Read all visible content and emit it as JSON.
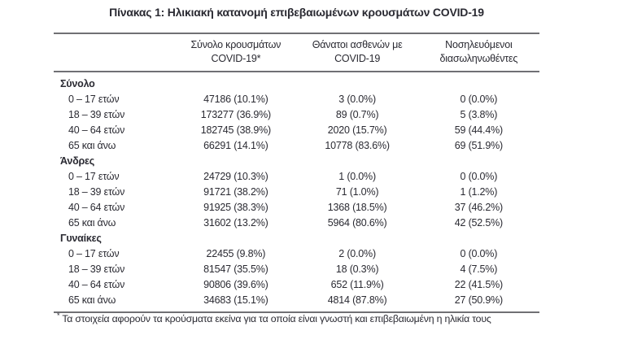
{
  "title": "Πίνακας 1: Ηλικιακή κατανομή επιβεβαιωμένων κρουσμάτων COVID-19",
  "headers": [
    {
      "line1": "Σύνολο κρουσμάτων",
      "line2": "COVID-19*"
    },
    {
      "line1": "Θάνατοι ασθενών με",
      "line2": "COVID-19"
    },
    {
      "line1": "Νοσηλευόμενοι",
      "line2": "διασωληνωθέντες"
    }
  ],
  "groups": [
    {
      "label": "Σύνολο",
      "rows": [
        {
          "label": "0 – 17 ετών",
          "cases": "47186 (10.1%)",
          "deaths": "3 (0.0%)",
          "intubated": "0 (0.0%)"
        },
        {
          "label": "18 – 39 ετών",
          "cases": "173277 (36.9%)",
          "deaths": "89 (0.7%)",
          "intubated": "5 (3.8%)"
        },
        {
          "label": "40 – 64 ετών",
          "cases": "182745 (38.9%)",
          "deaths": "2020 (15.7%)",
          "intubated": "59 (44.4%)"
        },
        {
          "label": "65 και άνω",
          "cases": "66291 (14.1%)",
          "deaths": "10778 (83.6%)",
          "intubated": "69 (51.9%)"
        }
      ]
    },
    {
      "label": "Άνδρες",
      "rows": [
        {
          "label": "0 – 17 ετών",
          "cases": "24729 (10.3%)",
          "deaths": "1 (0.0%)",
          "intubated": "0 (0.0%)"
        },
        {
          "label": "18 – 39 ετών",
          "cases": "91721 (38.2%)",
          "deaths": "71 (1.0%)",
          "intubated": "1 (1.2%)"
        },
        {
          "label": "40 – 64 ετών",
          "cases": "91925 (38.3%)",
          "deaths": "1368 (18.5%)",
          "intubated": "37 (46.2%)"
        },
        {
          "label": "65 και άνω",
          "cases": "31602 (13.2%)",
          "deaths": "5964 (80.6%)",
          "intubated": "42 (52.5%)"
        }
      ]
    },
    {
      "label": "Γυναίκες",
      "rows": [
        {
          "label": "0 – 17 ετών",
          "cases": "22455 (9.8%)",
          "deaths": "2 (0.0%)",
          "intubated": "0 (0.0%)"
        },
        {
          "label": "18 – 39 ετών",
          "cases": "81547 (35.5%)",
          "deaths": "18 (0.3%)",
          "intubated": "4 (7.5%)"
        },
        {
          "label": "40 – 64 ετών",
          "cases": "90806 (39.6%)",
          "deaths": "652 (11.9%)",
          "intubated": "22 (41.5%)"
        },
        {
          "label": "65 και άνω",
          "cases": "34683 (15.1%)",
          "deaths": "4814 (87.8%)",
          "intubated": "27 (50.9%)"
        }
      ]
    }
  ],
  "footnote": {
    "marker": "*",
    "text": "Τα στοιχεία αφορούν τα κρούσματα εκείνα για τα οποία είναι γνωστή και επιβεβαιωμένη η ηλικία τους"
  },
  "colors": {
    "text": "#2a2a32",
    "rule": "#707074"
  }
}
